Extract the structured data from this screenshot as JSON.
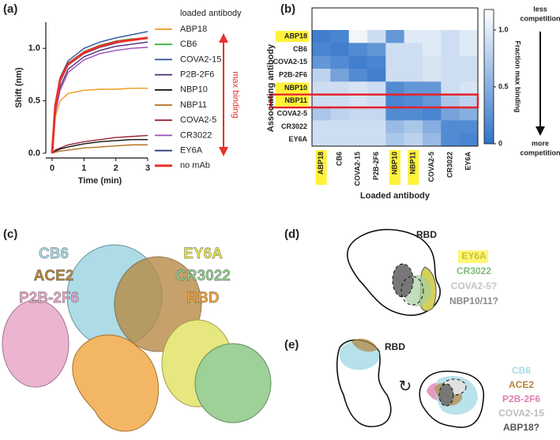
{
  "chart_data": [
    {
      "type": "line",
      "panel_label": "(a)",
      "x_label": "Time (min)",
      "y_label": "Shift (nm)",
      "legend_title": "loaded antibody",
      "annotation": "max binding",
      "x": [
        0,
        0.1,
        0.25,
        0.5,
        1,
        1.5,
        2,
        2.5,
        3
      ],
      "xlim": [
        0,
        3
      ],
      "xticks": [
        0,
        1,
        2,
        3
      ],
      "ylim": [
        0,
        1.25
      ],
      "yticks": [
        {
          "value": 0,
          "label": "0.0"
        },
        0.5,
        {
          "value": 1,
          "label": "1.0"
        }
      ],
      "series": [
        {
          "name": "ABP18",
          "color": "#f39a1e",
          "values": [
            0,
            0.35,
            0.5,
            0.57,
            0.6,
            0.61,
            0.61,
            0.62,
            0.62
          ]
        },
        {
          "name": "CB6",
          "color": "#3cb33c",
          "values": [
            0,
            0.45,
            0.7,
            0.86,
            0.97,
            1.03,
            1.07,
            1.09,
            1.1
          ]
        },
        {
          "name": "COVA2-15",
          "color": "#2a4f9a",
          "values": [
            0,
            0.45,
            0.72,
            0.88,
            1.0,
            1.06,
            1.1,
            1.13,
            1.16
          ]
        },
        {
          "name": "P2B-2F6",
          "color": "#4b2a7a",
          "values": [
            0,
            0.4,
            0.63,
            0.8,
            0.92,
            0.98,
            1.02,
            1.04,
            1.06
          ]
        },
        {
          "name": "NBP10",
          "color": "#111111",
          "values": [
            0,
            0.02,
            0.04,
            0.06,
            0.09,
            0.11,
            0.12,
            0.13,
            0.13
          ]
        },
        {
          "name": "NBP11",
          "color": "#b3701e",
          "values": [
            0,
            0.01,
            0.02,
            0.03,
            0.05,
            0.06,
            0.07,
            0.08,
            0.08
          ]
        },
        {
          "name": "COVA2-5",
          "color": "#9b2232",
          "values": [
            0,
            0.03,
            0.05,
            0.08,
            0.11,
            0.13,
            0.15,
            0.16,
            0.17
          ]
        },
        {
          "name": "CR3022",
          "color": "#9b4fb5",
          "values": [
            0,
            0.38,
            0.6,
            0.77,
            0.89,
            0.95,
            0.98,
            1.0,
            1.01
          ]
        },
        {
          "name": "EY6A",
          "color": "#1b2f6e",
          "values": [
            0,
            0.42,
            0.68,
            0.84,
            0.95,
            1.01,
            1.05,
            1.08,
            1.1
          ]
        },
        {
          "name": "no mAb",
          "color": "#e8312a",
          "values": [
            0,
            0.45,
            0.7,
            0.85,
            0.96,
            1.02,
            1.06,
            1.08,
            1.1
          ]
        }
      ]
    },
    {
      "type": "heatmap",
      "panel_label": "(b)",
      "x_label": "Loaded antibody",
      "y_label": "Associating antibody",
      "colorbar_label": "Fraction max binding",
      "top_note": "less competition",
      "bottom_note": "more competition",
      "x_categories": [
        "ABP18",
        "CB6",
        "COVA2-15",
        "P2B-2F6",
        "NBP10",
        "NBP11",
        "COVA2-5",
        "CR3022",
        "EY6A"
      ],
      "y_categories": [
        "ABP18",
        "CB6",
        "COVA2-15",
        "P2B-2F6",
        "NBP10",
        "NBP11",
        "COVA2-5",
        "CR3022",
        "EY6A"
      ],
      "label_colors": [
        "#fff23a",
        "none",
        "none",
        "none",
        "#fff23a",
        "#fff23a",
        "none",
        "none",
        "none"
      ],
      "boxed_row": 5,
      "box_color": "#e8202a",
      "colormap": [
        "#2f73c9",
        "#ffffff"
      ],
      "zlim": [
        0,
        1.18
      ],
      "zticks": [
        0,
        0.5,
        {
          "value": 1,
          "label": "1.0"
        }
      ],
      "values": [
        [
          0.1,
          0.15,
          1.1,
          0.9,
          0.3,
          1.0,
          1.0,
          0.9,
          1.0
        ],
        [
          0.15,
          0.1,
          0.2,
          0.3,
          0.9,
          0.9,
          1.0,
          0.9,
          1.0
        ],
        [
          0.3,
          0.2,
          0.1,
          0.15,
          0.9,
          0.9,
          0.95,
          0.9,
          0.9
        ],
        [
          0.8,
          0.4,
          0.2,
          0.1,
          0.9,
          0.9,
          0.95,
          0.9,
          0.9
        ],
        [
          0.9,
          0.9,
          0.95,
          0.9,
          0.2,
          0.3,
          0.3,
          0.9,
          0.95
        ],
        [
          0.9,
          0.9,
          0.95,
          0.9,
          0.15,
          0.2,
          0.3,
          0.7,
          0.8
        ],
        [
          0.7,
          0.8,
          0.85,
          0.85,
          0.2,
          0.2,
          0.15,
          0.4,
          0.5
        ],
        [
          0.9,
          0.9,
          0.9,
          0.9,
          0.6,
          0.7,
          0.5,
          0.2,
          0.2
        ],
        [
          0.9,
          0.9,
          0.9,
          0.9,
          0.7,
          0.8,
          0.6,
          0.2,
          0.15
        ]
      ]
    }
  ],
  "panel_c": {
    "label": "(c)",
    "texts": [
      {
        "text": "CB6",
        "color": "#a9dbe6"
      },
      {
        "text": "ACE2",
        "color": "#b4843c"
      },
      {
        "text": "P2B-2F6",
        "color": "#e9a5c6"
      },
      {
        "text": "EY6A",
        "color": "#e6e64a"
      },
      {
        "text": "CR3022",
        "color": "#92cb8c"
      },
      {
        "text": "RBD",
        "color": "#f5a236"
      }
    ]
  },
  "panel_d": {
    "label": "(d)",
    "title": "RBD",
    "texts": [
      {
        "text": "EY6A",
        "color": "#c8c23a"
      },
      {
        "text": "CR3022",
        "color": "#7fb97a"
      },
      {
        "text": "COVA2-5?",
        "color": "#c4c4c4"
      },
      {
        "text": "NBP10/11?",
        "color": "#8a8a8a"
      }
    ]
  },
  "panel_e": {
    "label": "(e)",
    "title": "RBD",
    "texts": [
      {
        "text": "CB6",
        "color": "#a9dbe6"
      },
      {
        "text": "ACE2",
        "color": "#b4843c"
      },
      {
        "text": "P2B-2F6",
        "color": "#e07fb0"
      },
      {
        "text": "COVA2-15",
        "color": "#bdbdbd"
      },
      {
        "text": "ABP18?",
        "color": "#555555"
      }
    ]
  }
}
